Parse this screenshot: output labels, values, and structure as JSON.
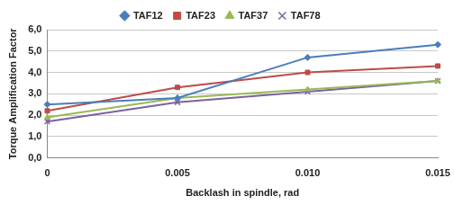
{
  "chart_data": {
    "type": "line",
    "x_label": "Backlash in spindle, rad",
    "y_label": "Torque Amplification Factor",
    "categories": [
      "0",
      "0.005",
      "0.010",
      "0.015"
    ],
    "series": [
      {
        "name": "TAF12",
        "color": "#4a7ebb",
        "marker": "diamond",
        "values": [
          2.5,
          2.8,
          4.7,
          5.3
        ]
      },
      {
        "name": "TAF23",
        "color": "#be4b48",
        "marker": "square",
        "values": [
          2.2,
          3.3,
          4.0,
          4.3
        ]
      },
      {
        "name": "TAF37",
        "color": "#98b954",
        "marker": "triangle",
        "values": [
          1.9,
          2.8,
          3.2,
          3.6
        ]
      },
      {
        "name": "TAF78",
        "color": "#7d60a0",
        "marker": "x",
        "values": [
          1.7,
          2.6,
          3.1,
          3.6
        ]
      }
    ],
    "ylim": [
      0,
      6
    ],
    "yticks": [
      {
        "value": 0,
        "label": "0,0"
      },
      {
        "value": 1,
        "label": "1,0"
      },
      {
        "value": 2,
        "label": "2,0"
      },
      {
        "value": 3,
        "label": "3,0"
      },
      {
        "value": 4,
        "label": "4,0"
      },
      {
        "value": 5,
        "label": "5,0"
      },
      {
        "value": 6,
        "label": "6,0"
      }
    ],
    "grid": true,
    "legend": "top"
  }
}
